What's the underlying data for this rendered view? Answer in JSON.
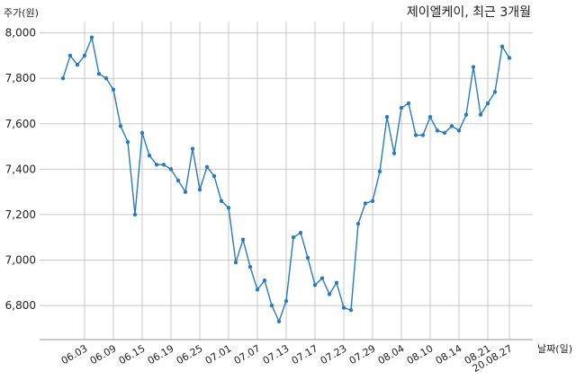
{
  "chart_data": {
    "type": "line",
    "title": "제이엘케이, 최근 3개월",
    "ylabel": "주가(원)",
    "xlabel": "날짜(일)",
    "ylim": [
      6650,
      8050
    ],
    "yticks": [
      6800,
      7000,
      7200,
      7400,
      7600,
      7800,
      8000
    ],
    "ytick_labels": [
      "6,800",
      "7,000",
      "7,200",
      "7,400",
      "7,600",
      "7,800",
      "8,000"
    ],
    "xtick_labels": [
      "06.03",
      "06.09",
      "06.15",
      "06.19",
      "06.25",
      "07.01",
      "07.07",
      "07.13",
      "07.17",
      "07.23",
      "07.29",
      "08.04",
      "08.10",
      "08.14",
      "08.21",
      "20.08.27"
    ],
    "xtick_index": [
      3,
      7,
      11,
      15,
      19,
      23,
      27,
      31,
      35,
      39,
      43,
      47,
      51,
      55,
      59,
      62
    ],
    "grid": true,
    "color": "#2b7bba",
    "values": [
      7800,
      7900,
      7860,
      7900,
      7980,
      7820,
      7800,
      7750,
      7590,
      7520,
      7200,
      7560,
      7460,
      7420,
      7420,
      7400,
      7350,
      7300,
      7490,
      7310,
      7410,
      7370,
      7260,
      7230,
      6990,
      7090,
      6970,
      6870,
      6910,
      6800,
      6730,
      6820,
      7100,
      7120,
      7010,
      6890,
      6920,
      6850,
      6900,
      6790,
      6780,
      7160,
      7250,
      7260,
      7390,
      7630,
      7470,
      7670,
      7690,
      7550,
      7550,
      7630,
      7570,
      7560,
      7590,
      7570,
      7640,
      7850,
      7640,
      7690,
      7740,
      7940,
      7890
    ]
  }
}
